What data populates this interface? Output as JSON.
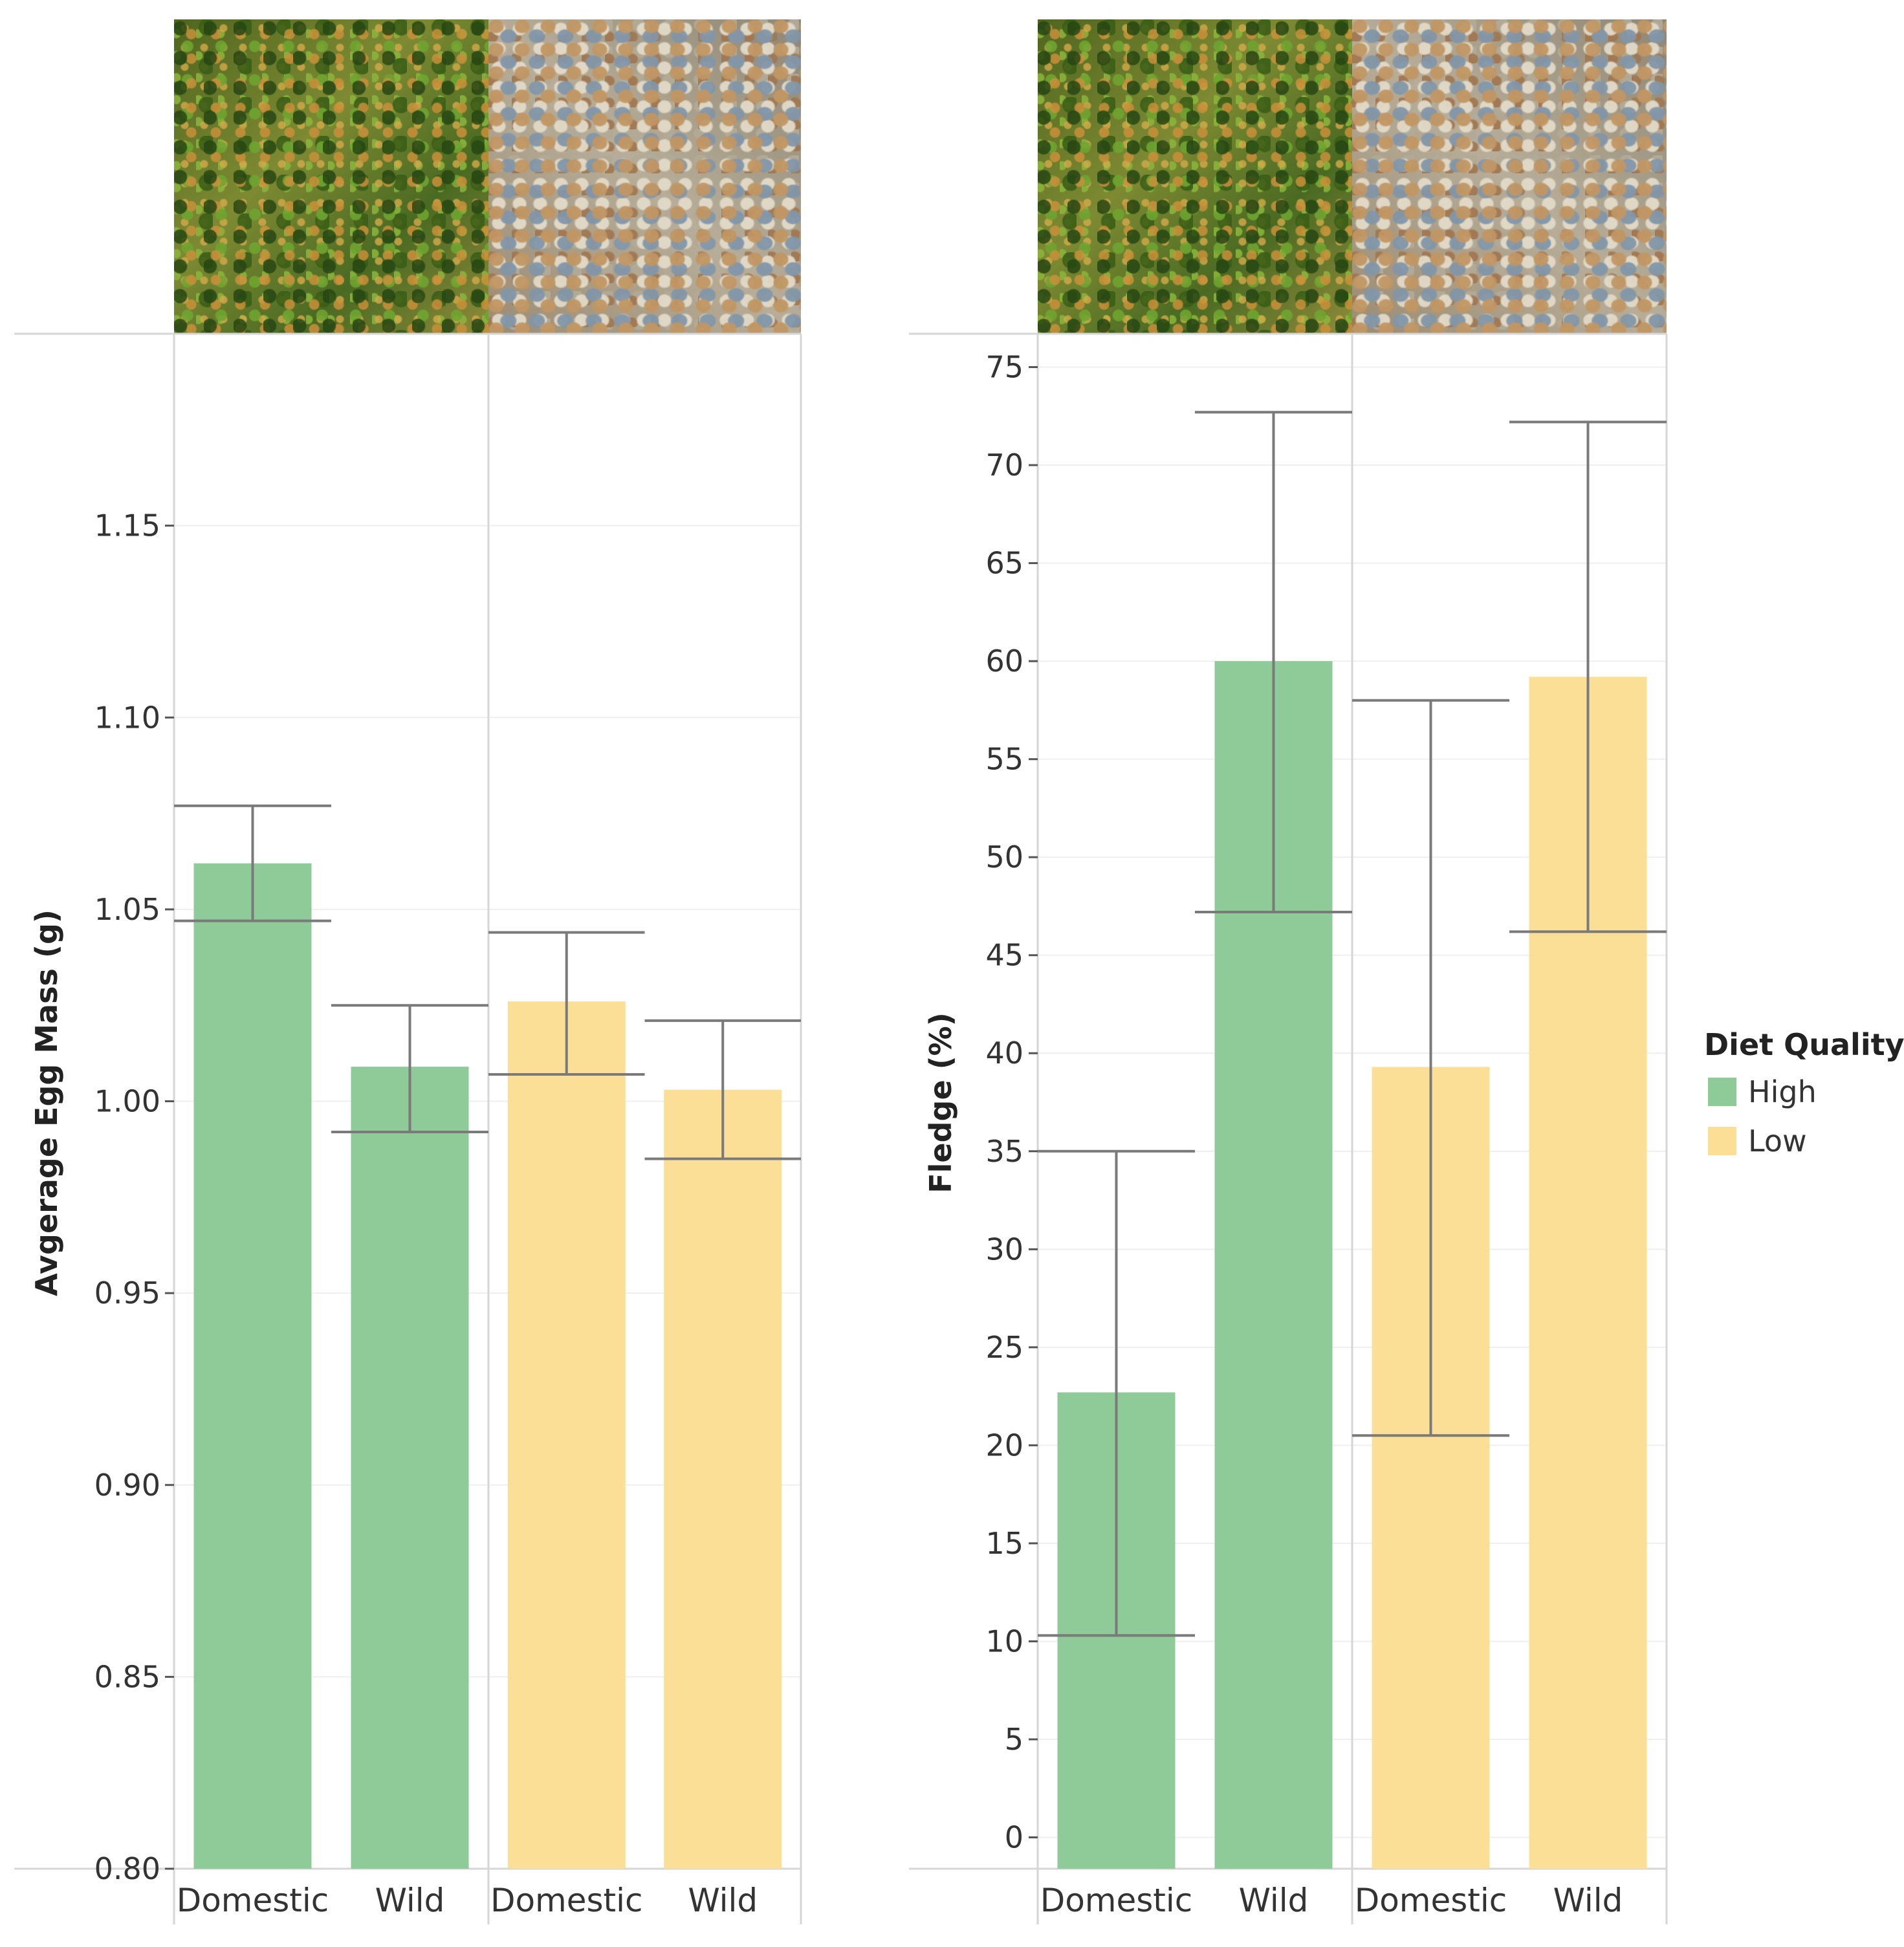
{
  "legend": {
    "title": "Diet Quality",
    "items": [
      {
        "label": "High",
        "color": "#8fcb98"
      },
      {
        "label": "Low",
        "color": "#fbdf96"
      }
    ]
  },
  "chart_data": [
    {
      "type": "bar",
      "title": "",
      "ylabel": "Avgerage Egg Mass (g)",
      "xlabel": "",
      "ylim": [
        0.8,
        1.2
      ],
      "yticks": [
        0.8,
        0.85,
        0.9,
        0.95,
        1.0,
        1.05,
        1.1,
        1.15
      ],
      "ytick_labels": [
        "0.80",
        "0.85",
        "0.90",
        "0.95",
        "1.00",
        "1.05",
        "1.10",
        "1.15"
      ],
      "grid": true,
      "panels": [
        {
          "diet_quality": "High",
          "image": "high-quality-food-photo",
          "bars": [
            {
              "category": "Domestic",
              "value": 1.062,
              "err_low": 1.047,
              "err_high": 1.077
            },
            {
              "category": "Wild",
              "value": 1.009,
              "err_low": 0.992,
              "err_high": 1.025
            }
          ]
        },
        {
          "diet_quality": "Low",
          "image": "low-quality-seed-photo",
          "bars": [
            {
              "category": "Domestic",
              "value": 1.026,
              "err_low": 1.007,
              "err_high": 1.044
            },
            {
              "category": "Wild",
              "value": 1.003,
              "err_low": 0.985,
              "err_high": 1.021
            }
          ]
        }
      ]
    },
    {
      "type": "bar",
      "title": "",
      "ylabel": "Fledge (%)",
      "xlabel": "",
      "ylim": [
        0,
        75
      ],
      "yticks": [
        0,
        5,
        10,
        15,
        20,
        25,
        30,
        35,
        40,
        45,
        50,
        55,
        60,
        65,
        70,
        75
      ],
      "ytick_labels": [
        "0",
        "5",
        "10",
        "15",
        "20",
        "25",
        "30",
        "35",
        "40",
        "45",
        "50",
        "55",
        "60",
        "65",
        "70",
        "75"
      ],
      "grid": true,
      "panels": [
        {
          "diet_quality": "High",
          "image": "high-quality-food-photo",
          "bars": [
            {
              "category": "Domestic",
              "value": 22.7,
              "err_low": 10.3,
              "err_high": 35.0
            },
            {
              "category": "Wild",
              "value": 60.0,
              "err_low": 47.2,
              "err_high": 72.7
            }
          ]
        },
        {
          "diet_quality": "Low",
          "image": "low-quality-seed-photo",
          "bars": [
            {
              "category": "Domestic",
              "value": 39.3,
              "err_low": 20.5,
              "err_high": 58.0
            },
            {
              "category": "Wild",
              "value": 59.2,
              "err_low": 46.2,
              "err_high": 72.2
            }
          ]
        }
      ]
    }
  ]
}
